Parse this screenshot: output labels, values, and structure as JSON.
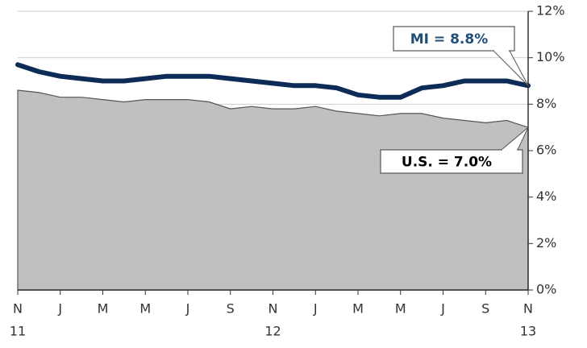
{
  "chart_data": {
    "type": "line",
    "categories": [
      "N",
      null,
      "J",
      null,
      "M",
      null,
      "M",
      null,
      "J",
      null,
      "S",
      null,
      "N",
      null,
      "J",
      null,
      "M",
      null,
      "M",
      null,
      "J",
      null,
      "S",
      null,
      "N"
    ],
    "category_years": [
      "11",
      null,
      null,
      null,
      null,
      null,
      null,
      null,
      null,
      null,
      null,
      null,
      "12",
      null,
      null,
      null,
      null,
      null,
      null,
      null,
      null,
      null,
      null,
      null,
      "13"
    ],
    "series": [
      {
        "style": "area",
        "color": "#c0c0c0",
        "edge_color": "#555555",
        "values": [
          8.6,
          8.5,
          8.3,
          8.3,
          8.2,
          8.1,
          8.2,
          8.2,
          8.2,
          8.1,
          7.8,
          7.9,
          7.8,
          7.8,
          7.9,
          7.7,
          7.6,
          7.5,
          7.6,
          7.6,
          7.4,
          7.3,
          7.2,
          7.3,
          7.0
        ],
        "value_labels": [
          null,
          null,
          null,
          null,
          null,
          null,
          null,
          null,
          null,
          null,
          null,
          null,
          null,
          null,
          null,
          null,
          null,
          null,
          null,
          null,
          null,
          null,
          null,
          null,
          "U.S. = 7.0%"
        ],
        "label_color": "#000000"
      },
      {
        "style": "line",
        "color": "#0d2b57",
        "values": [
          9.7,
          9.4,
          9.2,
          9.1,
          9.0,
          9.0,
          9.1,
          9.2,
          9.2,
          9.2,
          9.1,
          9.0,
          8.9,
          8.8,
          8.8,
          8.7,
          8.4,
          8.3,
          8.3,
          8.7,
          8.8,
          9.0,
          9.0,
          9.0,
          8.8
        ],
        "value_labels": [
          null,
          null,
          null,
          null,
          null,
          null,
          null,
          null,
          null,
          null,
          null,
          null,
          null,
          null,
          null,
          null,
          null,
          null,
          null,
          null,
          null,
          null,
          null,
          null,
          "MI = 8.8%"
        ],
        "label_color": "#1f4e79"
      }
    ],
    "ylim": [
      0,
      12
    ],
    "yticks": [
      {
        "value": 0,
        "label": "0%"
      },
      {
        "value": 2,
        "label": "2%"
      },
      {
        "value": 4,
        "label": "4%"
      },
      {
        "value": 6,
        "label": "6%"
      },
      {
        "value": 8,
        "label": "8%"
      },
      {
        "value": 10,
        "label": "10%"
      },
      {
        "value": 12,
        "label": "12%"
      }
    ],
    "grid": true,
    "y_axis_side": "right"
  }
}
